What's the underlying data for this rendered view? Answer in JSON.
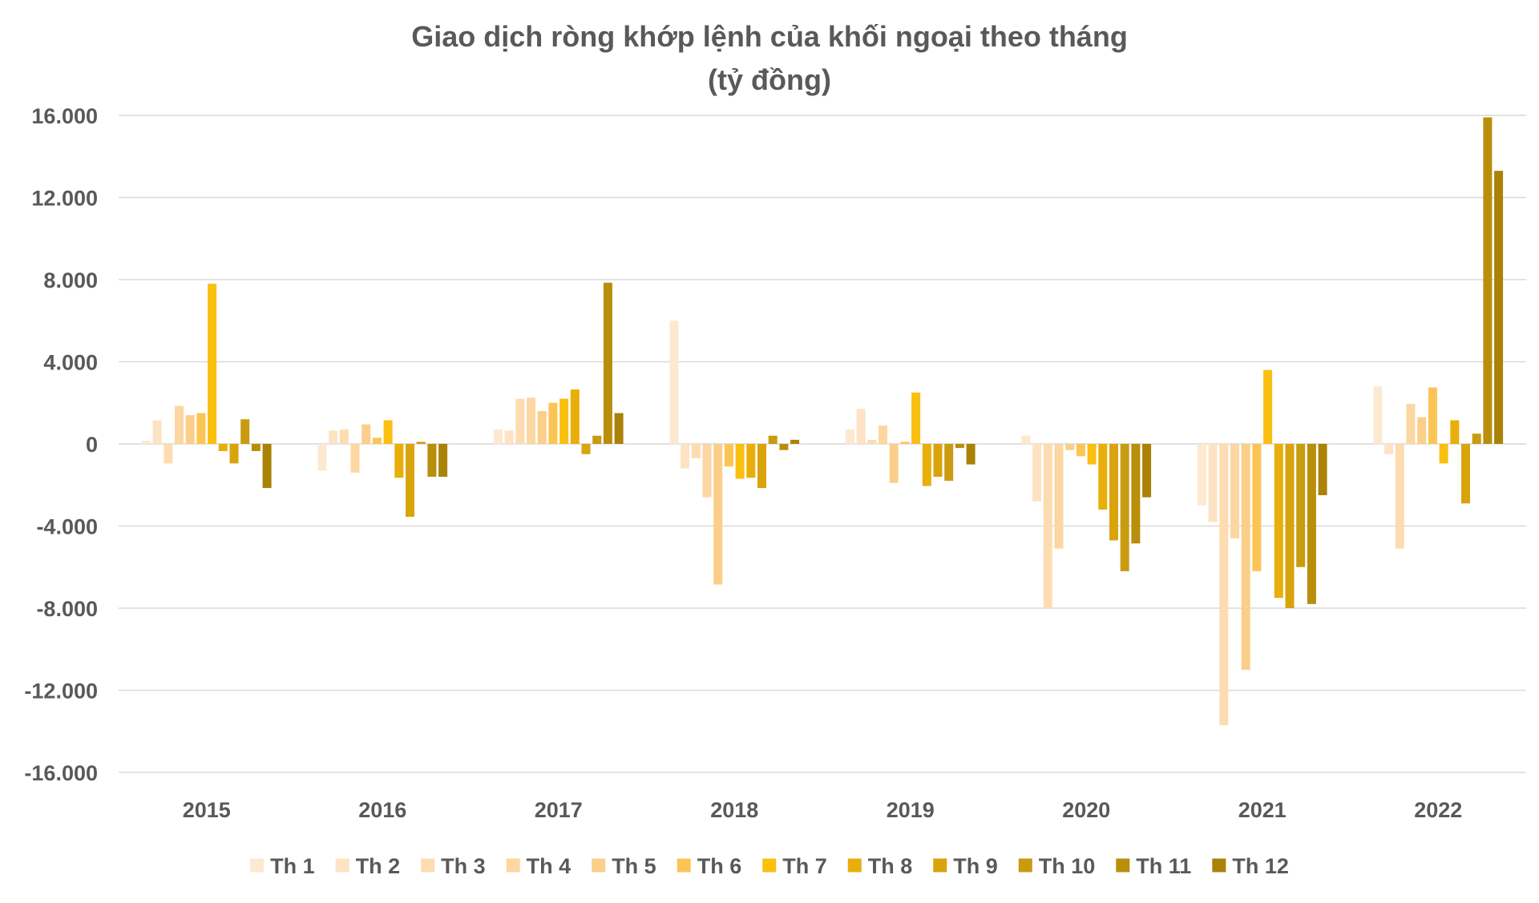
{
  "chart_data": {
    "type": "bar",
    "title": "Giao dịch ròng khớp lệnh của khối ngoại theo tháng",
    "subtitle": "(tỷ đồng)",
    "xlabel": "",
    "ylabel": "",
    "ylim": [
      -16000,
      16000
    ],
    "yticks": [
      16000,
      12000,
      8000,
      4000,
      0,
      -4000,
      -8000,
      -12000,
      -16000
    ],
    "ytick_labels": [
      "16.000",
      "12.000",
      "8.000",
      "4.000",
      "0",
      "-4.000",
      "-8.000",
      "-12.000",
      "-16.000"
    ],
    "grid": true,
    "legend_position": "bottom",
    "categories": [
      "2015",
      "2016",
      "2017",
      "2018",
      "2019",
      "2020",
      "2021",
      "2022"
    ],
    "series": [
      {
        "name": "Th 1",
        "color": "#fde9d0",
        "values": [
          150,
          -1300,
          700,
          6000,
          700,
          400,
          -3000,
          2800
        ]
      },
      {
        "name": "Th 2",
        "color": "#fde3c3",
        "values": [
          1150,
          650,
          650,
          -1200,
          1700,
          -2800,
          -3800,
          -500
        ]
      },
      {
        "name": "Th 3",
        "color": "#fddcb2",
        "values": [
          -950,
          700,
          2200,
          -700,
          200,
          -8000,
          -13700,
          -5100
        ]
      },
      {
        "name": "Th 4",
        "color": "#fcd7a1",
        "values": [
          1850,
          -1400,
          2250,
          -2600,
          900,
          -5100,
          -4600,
          1950
        ]
      },
      {
        "name": "Th 5",
        "color": "#fbcf89",
        "values": [
          1400,
          950,
          1600,
          -6850,
          -1900,
          -300,
          -11000,
          1300
        ]
      },
      {
        "name": "Th 6",
        "color": "#fbc555",
        "values": [
          1500,
          300,
          2000,
          -1100,
          100,
          -600,
          -6200,
          2750
        ]
      },
      {
        "name": "Th 7",
        "color": "#fbbf0f",
        "values": [
          7800,
          1150,
          2200,
          -1700,
          2500,
          -1000,
          3600,
          -950
        ]
      },
      {
        "name": "Th 8",
        "color": "#e9ae0a",
        "values": [
          -350,
          -1650,
          2650,
          -1650,
          -2050,
          -3200,
          -7500,
          1150
        ]
      },
      {
        "name": "Th 9",
        "color": "#d9a30c",
        "values": [
          -950,
          -3550,
          -500,
          -2150,
          -1600,
          -4700,
          -8000,
          -2900
        ]
      },
      {
        "name": "Th 10",
        "color": "#c99b10",
        "values": [
          1200,
          100,
          400,
          400,
          -1800,
          -6200,
          -6000,
          500
        ]
      },
      {
        "name": "Th 11",
        "color": "#b88e0b",
        "values": [
          -350,
          -1600,
          7850,
          -300,
          -200,
          -4850,
          -7800,
          15900
        ]
      },
      {
        "name": "Th 12",
        "color": "#a98207",
        "values": [
          -2150,
          -1600,
          1500,
          200,
          -1000,
          -2600,
          -2500,
          13300
        ]
      }
    ]
  },
  "colors": {
    "text": "#595959",
    "grid": "#d9d9d9",
    "background": "#ffffff"
  }
}
